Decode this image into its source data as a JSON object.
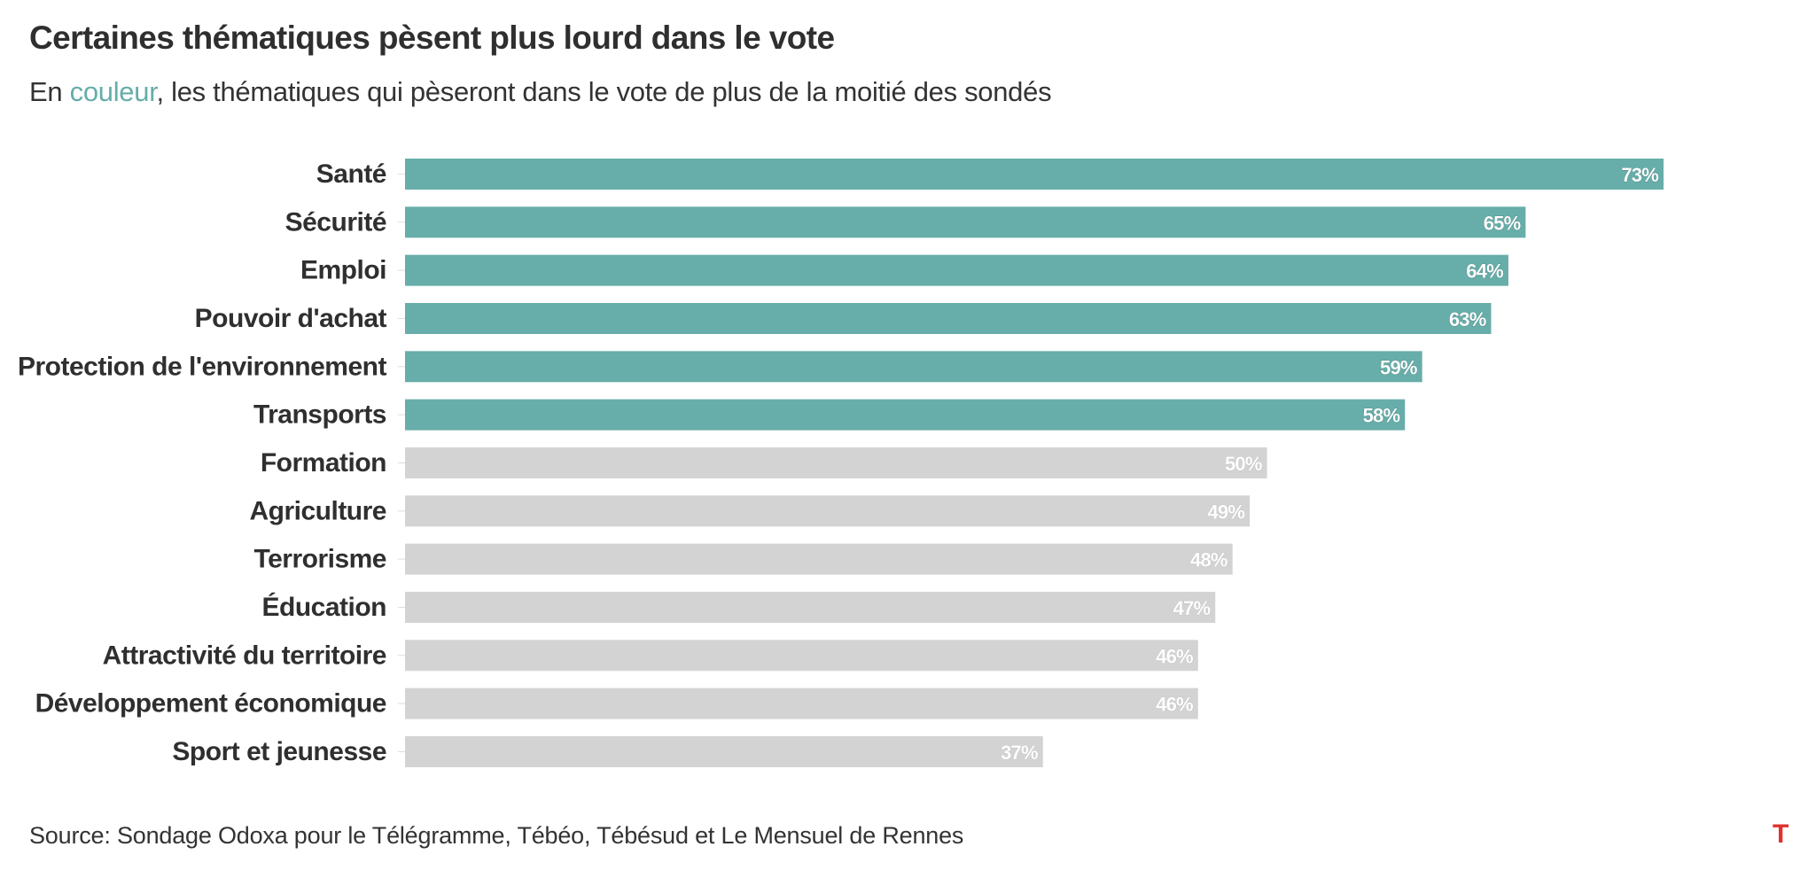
{
  "header": {
    "title": "Certaines thématiques pèsent plus lourd dans le vote",
    "subtitle_prefix": "En ",
    "subtitle_highlight": "couleur",
    "subtitle_suffix": ", les thématiques qui pèseront dans le vote de plus de la moitié des sondés"
  },
  "footer": {
    "source": "Source: Sondage Odoxa pour le Télégramme, Tébéo, Tébésud et Le Mensuel de Rennes",
    "logo": "T"
  },
  "colors": {
    "highlight": "#67ada9",
    "muted": "#d3d3d3",
    "label": "#2f2f2f"
  },
  "chart_data": {
    "type": "bar",
    "orientation": "horizontal",
    "categories": [
      "Santé",
      "Sécurité",
      "Emploi",
      "Pouvoir d'achat",
      "Protection de l'environnement",
      "Transports",
      "Formation",
      "Agriculture",
      "Terrorisme",
      "Éducation",
      "Attractivité du territoire",
      "Développement économique",
      "Sport et jeunesse"
    ],
    "values": [
      73,
      65,
      64,
      63,
      59,
      58,
      50,
      49,
      48,
      47,
      46,
      46,
      37
    ],
    "value_labels": [
      "73%",
      "65%",
      "64%",
      "63%",
      "59%",
      "58%",
      "50%",
      "49%",
      "48%",
      "47%",
      "46%",
      "46%",
      "37%"
    ],
    "highlighted": [
      true,
      true,
      true,
      true,
      true,
      true,
      false,
      false,
      false,
      false,
      false,
      false,
      false
    ],
    "xlim": [
      0,
      73
    ],
    "grid": false,
    "legend": "none"
  }
}
